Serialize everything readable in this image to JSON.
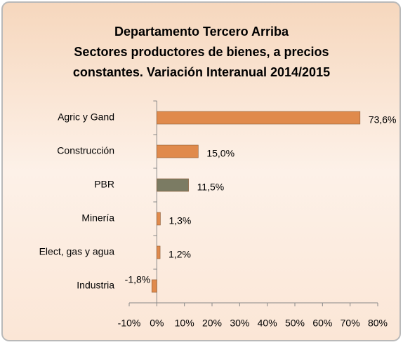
{
  "chart_data": {
    "type": "barh",
    "title": [
      "Departamento Tercero Arriba",
      "Sectores productores de bienes, a precios",
      "constantes. Variación Interanual 2014/2015"
    ],
    "categories": [
      "Agric y Gand",
      "Construcción",
      "PBR",
      "Minería",
      "Elect, gas y agua",
      "Industria"
    ],
    "values": [
      73.6,
      15.0,
      11.5,
      1.3,
      1.2,
      -1.8
    ],
    "value_labels": [
      "73,6%",
      "15,0%",
      "11,5%",
      "1,3%",
      "1,2%",
      "-1,8%"
    ],
    "colors": [
      "#e08a4c",
      "#e08a4c",
      "#7b7b63",
      "#e08a4c",
      "#e08a4c",
      "#e08a4c"
    ],
    "xlim": [
      -10,
      80
    ],
    "xticks": [
      {
        "value": -10,
        "label": "-10%"
      },
      {
        "value": 0,
        "label": "0%"
      },
      {
        "value": 10,
        "label": "10%"
      },
      {
        "value": 20,
        "label": "20%"
      },
      {
        "value": 30,
        "label": "30%"
      },
      {
        "value": 40,
        "label": "40%"
      },
      {
        "value": 50,
        "label": "50%"
      },
      {
        "value": 60,
        "label": "60%"
      },
      {
        "value": 70,
        "label": "70%"
      },
      {
        "value": 80,
        "label": "80%"
      }
    ]
  }
}
